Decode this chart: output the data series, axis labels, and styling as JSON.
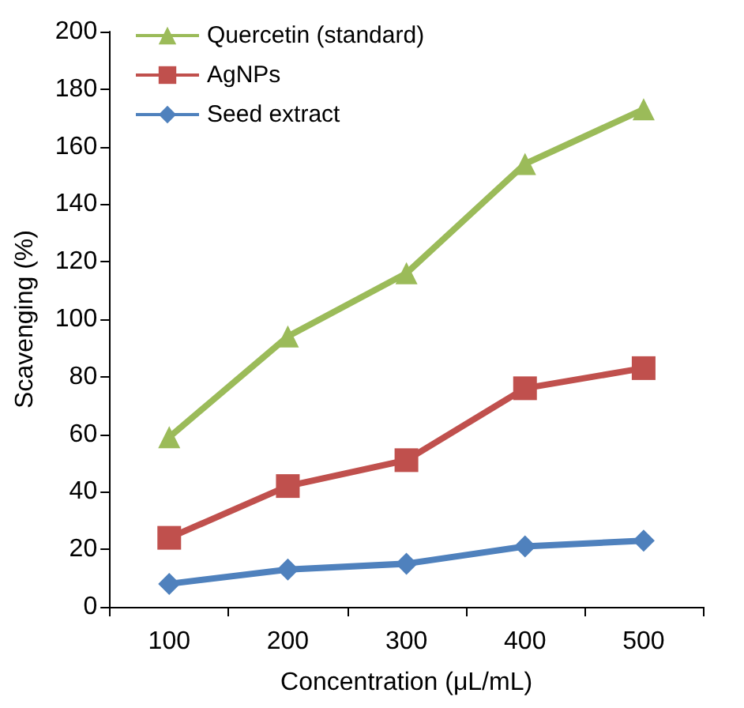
{
  "chart_data": {
    "type": "line",
    "xlabel": "Concentration (μL/mL)",
    "ylabel": "Scavenging (%)",
    "categories": [
      "100",
      "200",
      "300",
      "400",
      "500"
    ],
    "series": [
      {
        "name": "Quercetin (standard)",
        "color": "#9bbb59",
        "marker": "triangle",
        "values": [
          59,
          94,
          116,
          154,
          173
        ]
      },
      {
        "name": "AgNPs",
        "color": "#c0504d",
        "marker": "square",
        "values": [
          24,
          42,
          51,
          76,
          83
        ]
      },
      {
        "name": "Seed extract",
        "color": "#4f81bd",
        "marker": "diamond",
        "values": [
          8,
          13,
          15,
          21,
          23
        ]
      }
    ],
    "ylim": [
      0,
      200
    ],
    "yticks": [
      0,
      20,
      40,
      60,
      80,
      100,
      120,
      140,
      160,
      180,
      200
    ],
    "grid": false,
    "legend": "top left"
  }
}
